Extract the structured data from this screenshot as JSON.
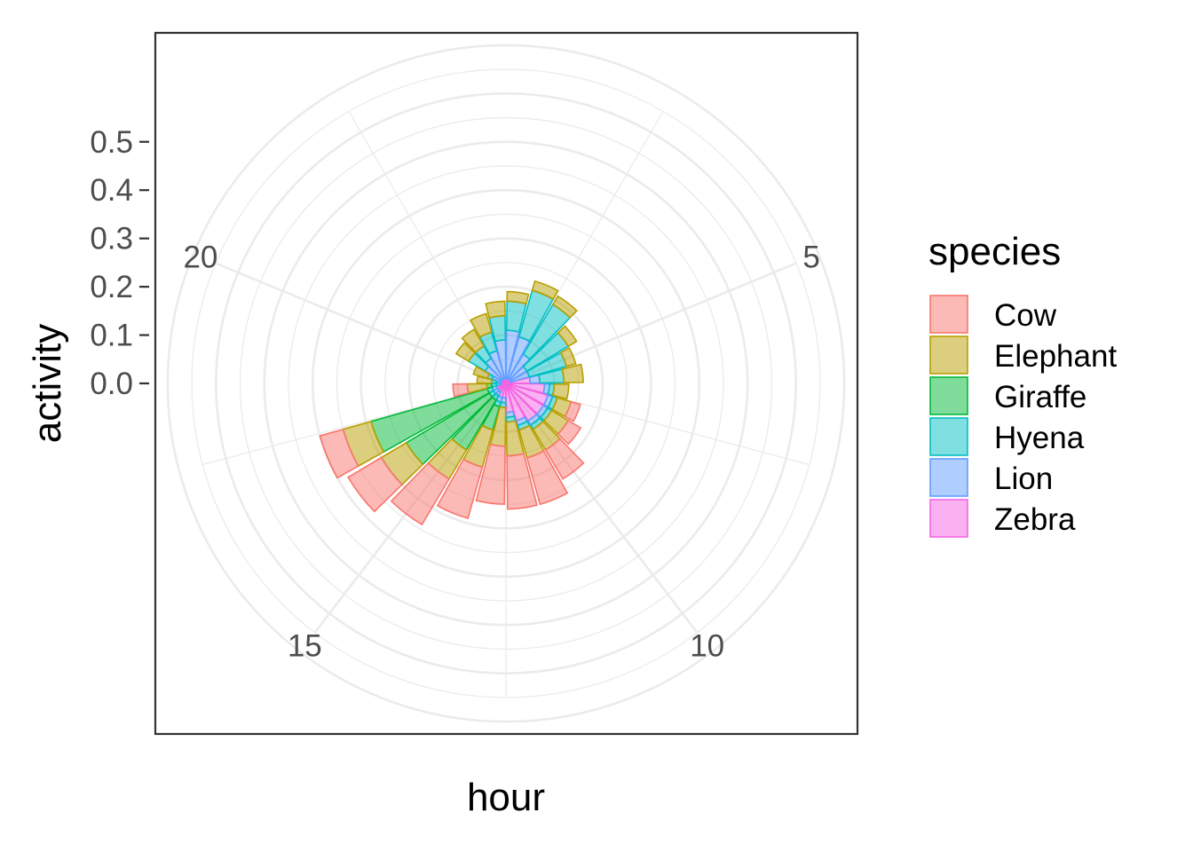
{
  "chart_data": {
    "type": "bar",
    "coordinates": "polar",
    "position": "stacked",
    "xlabel": "hour",
    "ylabel": "activity",
    "x_ticks": [
      5,
      10,
      15,
      20
    ],
    "y_ticks": [
      "0.0",
      "0.1",
      "0.2",
      "0.3",
      "0.4",
      "0.5"
    ],
    "ylim": [
      0,
      0.72
    ],
    "grid": true,
    "legend_title": "species",
    "legend_position": "right",
    "categories": [
      1,
      2,
      3,
      4,
      5,
      6,
      7,
      8,
      9,
      10,
      11,
      12,
      13,
      14,
      15,
      16,
      17,
      18,
      19,
      20,
      21,
      22,
      23,
      24
    ],
    "series": [
      {
        "name": "Zebra",
        "color": "#F564E3",
        "values": [
          0.01,
          0.01,
          0.01,
          0.01,
          0.01,
          0.05,
          0.08,
          0.09,
          0.09,
          0.09,
          0.08,
          0.06,
          0.03,
          0.03,
          0.02,
          0.02,
          0.02,
          0.01,
          0.01,
          0.01,
          0.01,
          0.01,
          0.01,
          0.01
        ]
      },
      {
        "name": "Lion",
        "color": "#619CFF",
        "values": [
          0.1,
          0.09,
          0.06,
          0.04,
          0.04,
          0.02,
          0.01,
          0.01,
          0.01,
          0.01,
          0.01,
          0.01,
          0.01,
          0.01,
          0.01,
          0.01,
          0.01,
          0.01,
          0.01,
          0.02,
          0.04,
          0.05,
          0.06,
          0.08
        ]
      },
      {
        "name": "Hyena",
        "color": "#00BFC4",
        "values": [
          0.06,
          0.1,
          0.12,
          0.1,
          0.08,
          0.05,
          0.01,
          0.01,
          0.01,
          0.01,
          0.01,
          0.01,
          0.01,
          0.01,
          0.01,
          0.01,
          0.01,
          0.01,
          0.01,
          0.01,
          0.04,
          0.03,
          0.04,
          0.05
        ]
      },
      {
        "name": "Giraffe",
        "color": "#00BA38",
        "values": [
          0.0,
          0.0,
          0.0,
          0.0,
          0.0,
          0.0,
          0.0,
          0.0,
          0.0,
          0.0,
          0.0,
          0.0,
          0.0,
          0.05,
          0.12,
          0.2,
          0.25,
          0.01,
          0.0,
          0.0,
          0.0,
          0.0,
          0.0,
          0.0
        ]
      },
      {
        "name": "Elephant",
        "color": "#B79F00",
        "values": [
          0.02,
          0.02,
          0.02,
          0.02,
          0.02,
          0.04,
          0.03,
          0.03,
          0.04,
          0.05,
          0.06,
          0.07,
          0.08,
          0.08,
          0.07,
          0.06,
          0.06,
          0.04,
          0.03,
          0.03,
          0.03,
          0.04,
          0.04,
          0.03
        ]
      },
      {
        "name": "Cow",
        "color": "#F8766D",
        "values": [
          0.0,
          0.0,
          0.0,
          0.0,
          0.0,
          0.0,
          0.0,
          0.02,
          0.03,
          0.07,
          0.1,
          0.11,
          0.12,
          0.11,
          0.11,
          0.08,
          0.05,
          0.03,
          0.0,
          0.0,
          0.0,
          0.0,
          0.0,
          0.0
        ]
      }
    ],
    "legend_order": [
      "Cow",
      "Elephant",
      "Giraffe",
      "Hyena",
      "Lion",
      "Zebra"
    ]
  }
}
